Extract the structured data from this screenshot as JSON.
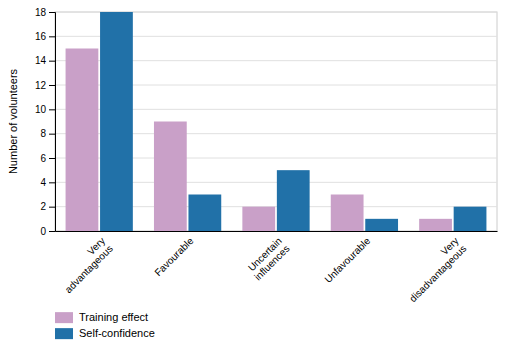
{
  "chart_data": {
    "type": "bar",
    "ylabel": "Number of volunteers",
    "categories": [
      "Very\nadvantageous",
      "Favourable",
      "Uncertain\ninfluences",
      "Unfavourable",
      "Very\ndisadvantageous"
    ],
    "series": [
      {
        "name": "Training effect",
        "color": "#c9a0c8",
        "values": [
          15,
          9,
          2,
          3,
          1
        ]
      },
      {
        "name": "Self-confidence",
        "color": "#2171a8",
        "values": [
          18,
          3,
          5,
          1,
          2
        ]
      }
    ],
    "ylim": [
      0,
      18
    ],
    "yticks": [
      0,
      2,
      4,
      6,
      8,
      10,
      12,
      14,
      16,
      18
    ],
    "grid": true,
    "legend": "bottom-left"
  }
}
